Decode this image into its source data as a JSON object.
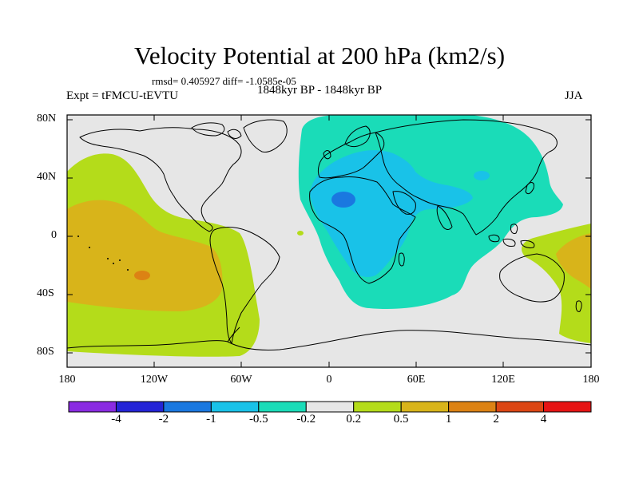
{
  "title": "Velocity Potential at 200 hPa (km2/s)",
  "stats": "rmsd= 0.405927 diff= -1.0585e-05",
  "left_label": "Expt = tFMCU-tEVTU",
  "center_label": "1848kyr BP - 1848kyr BP",
  "right_label": "JJA",
  "lat_labels": [
    "80N",
    "40N",
    "0",
    "40S",
    "80S"
  ],
  "lon_labels": [
    "180",
    "120W",
    "60W",
    "0",
    "60E",
    "120E",
    "180"
  ],
  "colorbar": {
    "colors": [
      "#8a2be2",
      "#2424d6",
      "#1a78e0",
      "#19c2e8",
      "#1adcb8",
      "#e6e6e6",
      "#b4dc1a",
      "#d8b41a",
      "#dc8214",
      "#dc4614",
      "#e61414"
    ],
    "labels": [
      "-4",
      "-2",
      "-1",
      "-0.5",
      "-0.2",
      "0.2",
      "0.5",
      "1",
      "2",
      "4"
    ]
  },
  "fill_colors": {
    "background": "#e6e6e6",
    "level_0_2_0_5": "#b4dc1a",
    "level_0_5_1": "#d8b41a",
    "level_1_2": "#dc8214",
    "level_m0_2_m0_5": "#1adcb8",
    "level_m0_5_m1": "#19c2e8",
    "level_m1_m2": "#1a78e0"
  }
}
